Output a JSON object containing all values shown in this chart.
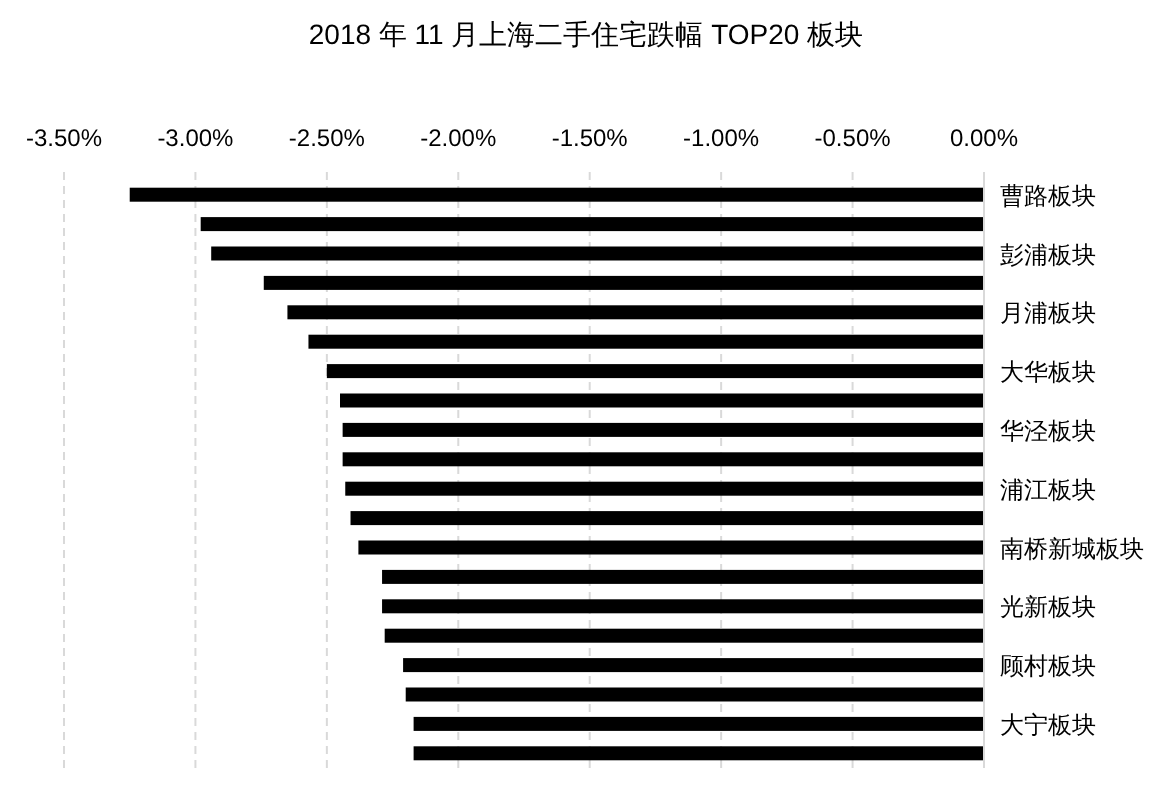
{
  "chart_data": {
    "type": "bar",
    "orientation": "horizontal",
    "title": "2018 年 11 月上海二手住宅跌幅 TOP20 板块",
    "categories": [
      "曹路板块",
      null,
      "彭浦板块",
      null,
      "月浦板块",
      null,
      "大华板块",
      null,
      "华泾板块",
      null,
      "浦江板块",
      null,
      "南桥新城板块",
      null,
      "光新板块",
      null,
      "顾村板块",
      null,
      "大宁板块",
      null
    ],
    "values": [
      -3.25,
      -2.98,
      -2.94,
      -2.74,
      -2.65,
      -2.57,
      -2.5,
      -2.45,
      -2.44,
      -2.44,
      -2.43,
      -2.41,
      -2.38,
      -2.29,
      -2.29,
      -2.28,
      -2.21,
      -2.2,
      -2.17,
      -2.17
    ],
    "color": "#000000",
    "xlim": [
      -3.5,
      0
    ],
    "xticks": [
      {
        "value": -3.5,
        "label": "-3.50%"
      },
      {
        "value": -3,
        "label": "-3.00%"
      },
      {
        "value": -2.5,
        "label": "-2.50%"
      },
      {
        "value": -2,
        "label": "-2.00%"
      },
      {
        "value": -1.5,
        "label": "-1.50%"
      },
      {
        "value": -1,
        "label": "-1.00%"
      },
      {
        "value": -0.5,
        "label": "-0.50%"
      },
      {
        "value": 0,
        "label": "0.00%"
      }
    ],
    "grid": "x"
  }
}
